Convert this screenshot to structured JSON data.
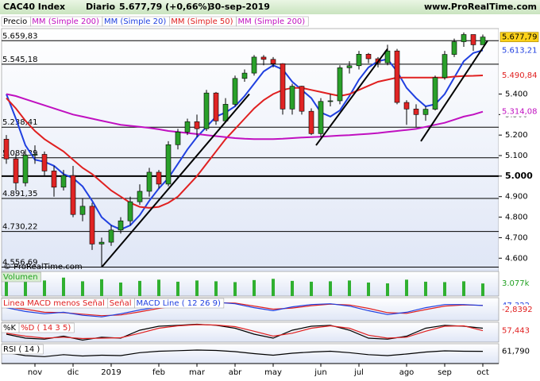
{
  "header": {
    "symbol": "CAC40 Index",
    "period": "Diario",
    "last": "5.677,79 (+0,66%)",
    "date": "30-sep-2019",
    "site": "www.ProRealTime.com"
  },
  "chart_data": [
    {
      "type": "candlestick",
      "categories": [
        null,
        null,
        null,
        "nov",
        null,
        null,
        null,
        "dic",
        null,
        null,
        null,
        "2019",
        null,
        null,
        null,
        null,
        "feb",
        null,
        null,
        null,
        "mar",
        null,
        null,
        null,
        "abr",
        null,
        null,
        null,
        "may",
        null,
        null,
        null,
        null,
        "jun",
        null,
        null,
        null,
        "jul",
        null,
        null,
        null,
        null,
        "ago",
        null,
        null,
        null,
        "sep",
        null,
        null,
        null,
        "oct"
      ],
      "open": [
        5180,
        5084,
        4967,
        5102,
        5106,
        5025,
        4946,
        5003,
        4813,
        4853,
        4669,
        4678,
        4737,
        4782,
        4875,
        4926,
        5019,
        4961,
        5153,
        5215,
        5265,
        5231,
        5405,
        5269,
        5350,
        5476,
        5502,
        5580,
        5569,
        5548,
        5327,
        5438,
        5316,
        5207,
        5364,
        5367,
        5528,
        5538,
        5594,
        5572,
        5552,
        5610,
        5359,
        5327,
        5300,
        5326,
        5480,
        5593,
        5655,
        5690,
        5640
      ],
      "high": [
        5200,
        5110,
        5130,
        5150,
        5120,
        5050,
        5030,
        5050,
        4890,
        4870,
        4700,
        4760,
        4800,
        4900,
        4960,
        5040,
        5030,
        5170,
        5230,
        5280,
        5300,
        5420,
        5410,
        5380,
        5490,
        5520,
        5590,
        5590,
        5580,
        5550,
        5450,
        5440,
        5330,
        5380,
        5400,
        5540,
        5560,
        5610,
        5600,
        5580,
        5640,
        5620,
        5370,
        5350,
        5340,
        5490,
        5610,
        5670,
        5700,
        5690,
        5690
      ],
      "low": [
        5060,
        4930,
        4950,
        5060,
        5000,
        4900,
        4930,
        4800,
        4780,
        4640,
        4556,
        4660,
        4720,
        4760,
        4860,
        4900,
        4940,
        4950,
        5130,
        5200,
        5190,
        5220,
        5250,
        5260,
        5340,
        5460,
        5490,
        5540,
        5530,
        5300,
        5300,
        5300,
        5200,
        5190,
        5340,
        5350,
        5500,
        5520,
        5550,
        5530,
        5540,
        5350,
        5250,
        5240,
        5270,
        5320,
        5470,
        5580,
        5630,
        5610,
        5640
      ],
      "close": [
        5084,
        4967,
        5102,
        5106,
        5025,
        4946,
        5003,
        4813,
        4853,
        4669,
        4678,
        4737,
        4782,
        4875,
        4926,
        5019,
        4961,
        5153,
        5215,
        5265,
        5231,
        5405,
        5269,
        5350,
        5476,
        5502,
        5580,
        5569,
        5548,
        5327,
        5438,
        5316,
        5207,
        5364,
        5367,
        5528,
        5538,
        5594,
        5572,
        5552,
        5610,
        5359,
        5327,
        5300,
        5326,
        5480,
        5593,
        5655,
        5690,
        5640,
        5677.79
      ],
      "up_color": "#2aa02a",
      "down_color": "#e02424",
      "legend": [
        {
          "name": "Precio",
          "color": "#000000"
        },
        {
          "name": "MM (Simple 200)",
          "color": "#c010c0"
        },
        {
          "name": "MM (Simple 20)",
          "color": "#2040e0"
        },
        {
          "name": "MM (Simple 50)",
          "color": "#e02020"
        },
        {
          "name": "MM (Simple 200)",
          "color": "#c010c0"
        }
      ],
      "series": [
        {
          "color": "#2040e0",
          "values": [
            5400,
            5280,
            5150,
            5080,
            5070,
            5050,
            5010,
            4990,
            4950,
            4880,
            4800,
            4760,
            4740,
            4760,
            4810,
            4880,
            4940,
            4990,
            5060,
            5130,
            5190,
            5240,
            5290,
            5310,
            5340,
            5390,
            5450,
            5510,
            5540,
            5520,
            5460,
            5420,
            5380,
            5310,
            5290,
            5320,
            5390,
            5470,
            5530,
            5560,
            5570,
            5510,
            5430,
            5380,
            5340,
            5350,
            5400,
            5480,
            5560,
            5600,
            5613.21
          ]
        },
        {
          "color": "#e02020",
          "values": [
            5380,
            5330,
            5270,
            5220,
            5180,
            5150,
            5120,
            5080,
            5040,
            5010,
            4970,
            4930,
            4900,
            4870,
            4850,
            4845,
            4850,
            4870,
            4900,
            4950,
            5000,
            5060,
            5120,
            5180,
            5230,
            5280,
            5330,
            5370,
            5400,
            5420,
            5430,
            5430,
            5420,
            5410,
            5400,
            5390,
            5400,
            5420,
            5440,
            5460,
            5470,
            5480,
            5480,
            5480,
            5480,
            5480,
            5480,
            5485,
            5488,
            5489,
            5490.84
          ]
        },
        {
          "color": "#c010c0",
          "values": [
            5400,
            5390,
            5375,
            5360,
            5345,
            5330,
            5315,
            5300,
            5290,
            5280,
            5270,
            5260,
            5250,
            5245,
            5240,
            5235,
            5228,
            5220,
            5215,
            5210,
            5205,
            5200,
            5195,
            5190,
            5185,
            5182,
            5180,
            5180,
            5180,
            5182,
            5185,
            5188,
            5190,
            5192,
            5195,
            5198,
            5200,
            5203,
            5206,
            5210,
            5215,
            5220,
            5225,
            5230,
            5240,
            5250,
            5260,
            5275,
            5290,
            5300,
            5314.08
          ]
        }
      ],
      "ylim": [
        4543,
        5719
      ],
      "yticks": [
        {
          "value": 4600,
          "label": "4.600"
        },
        {
          "value": 4700,
          "label": "4.700"
        },
        {
          "value": 4800,
          "label": "4.800"
        },
        {
          "value": 4900,
          "label": "4.900"
        },
        {
          "value": 5000,
          "label": "5.000",
          "bold": true
        },
        {
          "value": 5100,
          "label": "5.100"
        },
        {
          "value": 5200,
          "label": "5.200"
        },
        {
          "value": 5300,
          "label": "5.300"
        },
        {
          "value": 5400,
          "label": "5.400"
        }
      ],
      "levels": [
        {
          "value": 5659.83,
          "label": "5.659,83"
        },
        {
          "value": 5545.18,
          "label": "5.545,18"
        },
        {
          "value": 5238.41,
          "label": "5.238,41"
        },
        {
          "value": 5089.39,
          "label": "5.089,39"
        },
        {
          "value": 4891.35,
          "label": "4.891,35"
        },
        {
          "value": 4730.22,
          "label": "4.730,22"
        },
        {
          "value": 4556.69,
          "label": "4.556,69"
        }
      ],
      "trendlines": [
        {
          "x": [
            10.5,
            26
          ],
          "y": [
            4556,
            5400
          ]
        },
        {
          "x": [
            33,
            40.5
          ],
          "y": [
            5150,
            5620
          ]
        },
        {
          "x": [
            44,
            51
          ],
          "y": [
            5170,
            5660
          ]
        }
      ],
      "right_labels": [
        {
          "value": 5677.79,
          "label": "5.677,79",
          "color": "#000000",
          "fill": "#ffd21a"
        },
        {
          "value": 5613.21,
          "label": "5.613,21",
          "color": "#2040e0",
          "fill": "#ffffff"
        },
        {
          "value": 5490.84,
          "label": "5.490,84",
          "color": "#e02020",
          "fill": "#ffffff"
        },
        {
          "value": 5314.08,
          "label": "5.314,08",
          "color": "#c010c0",
          "fill": "#ffffff"
        },
        {
          "value": 5314.08,
          "label": "5.314,08",
          "color": "#c010c0",
          "fill": "#ffffff"
        }
      ],
      "copyright": "© ProRealTime.com"
    },
    {
      "type": "bar",
      "legend": [
        {
          "name": "Volumen",
          "color": "#20a020"
        }
      ],
      "series": [
        {
          "color": "#30b030",
          "values": [
            3900,
            4200,
            3800,
            4500,
            3600,
            4100,
            3300,
            3700,
            4000,
            3500,
            3800,
            3600,
            3400,
            3900,
            4200,
            3700,
            3500,
            3600,
            3800,
            3300,
            3100,
            4000,
            3500,
            3400,
            3600,
            3077
          ]
        }
      ],
      "ylim": [
        0,
        6000
      ],
      "right_labels": [
        {
          "value": 3077,
          "label": "3.077k",
          "color": "#20a020",
          "fill": "#ffffff"
        }
      ]
    },
    {
      "type": "line",
      "legend": [
        {
          "name": "Linea MACD menos Señal",
          "color": "#e02020"
        },
        {
          "name": "Señal",
          "color": "#e02020"
        },
        {
          "name": "MACD Line ( 12 26 9)",
          "color": "#2040e0"
        }
      ],
      "series": [
        {
          "color": "#e02020",
          "values": [
            30,
            0,
            -40,
            -45,
            -65,
            -85,
            -75,
            -35,
            10,
            45,
            70,
            85,
            80,
            40,
            0,
            15,
            45,
            65,
            55,
            10,
            -45,
            -55,
            -5,
            40,
            55,
            50.16
          ]
        },
        {
          "color": "#2040e0",
          "values": [
            20,
            -30,
            -60,
            -40,
            -80,
            -100,
            -60,
            -10,
            30,
            60,
            80,
            90,
            70,
            20,
            -20,
            30,
            60,
            70,
            40,
            -20,
            -70,
            -40,
            20,
            60,
            60,
            47.322
          ]
        }
      ],
      "ylim": [
        -150,
        150
      ],
      "right_labels": [
        {
          "value": 47.322,
          "label": "47,322",
          "color": "#2040e0",
          "fill": "#ffffff"
        },
        {
          "value": -2.8392,
          "label": "-2,8392",
          "color": "#e02020",
          "fill": "#ffffff"
        }
      ]
    },
    {
      "type": "line",
      "legend": [
        {
          "name": "%K",
          "color": "#000000"
        },
        {
          "name": "%D ( 14 3 5)",
          "color": "#e02020"
        }
      ],
      "series": [
        {
          "color": "#000000",
          "values": [
            40,
            20,
            15,
            30,
            10,
            25,
            20,
            60,
            80,
            85,
            90,
            85,
            70,
            40,
            20,
            60,
            80,
            85,
            60,
            20,
            15,
            30,
            70,
            85,
            80,
            70
          ]
        },
        {
          "color": "#e02020",
          "values": [
            45,
            30,
            20,
            25,
            18,
            20,
            22,
            45,
            70,
            82,
            88,
            86,
            78,
            55,
            30,
            45,
            70,
            82,
            70,
            35,
            20,
            25,
            55,
            80,
            82,
            57.443
          ]
        }
      ],
      "ylim": [
        0,
        100
      ],
      "right_labels": [
        {
          "value": 57.443,
          "label": "57,443",
          "color": "#e02020",
          "fill": "#ffffff"
        }
      ]
    },
    {
      "type": "line",
      "legend": [
        {
          "name": "RSI ( 14 )",
          "color": "#000000"
        }
      ],
      "series": [
        {
          "color": "#000000",
          "values": [
            55,
            40,
            35,
            45,
            38,
            42,
            40,
            55,
            62,
            65,
            68,
            66,
            60,
            50,
            42,
            52,
            58,
            62,
            55,
            45,
            40,
            48,
            58,
            64,
            62,
            61.79
          ]
        }
      ],
      "ylim": [
        0,
        100
      ],
      "right_labels": [
        {
          "value": 61.79,
          "label": "61,790",
          "color": "#000000",
          "fill": "#ffffff"
        }
      ]
    }
  ]
}
